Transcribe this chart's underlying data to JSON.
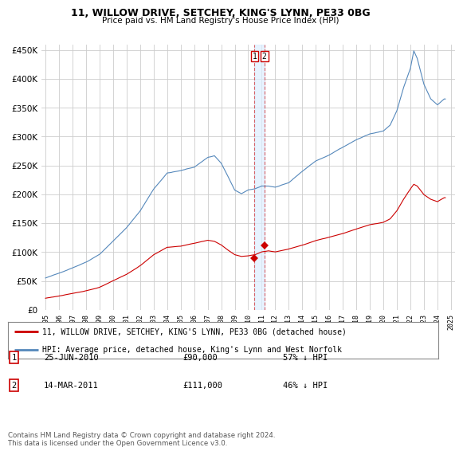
{
  "title": "11, WILLOW DRIVE, SETCHEY, KING'S LYNN, PE33 0BG",
  "subtitle": "Price paid vs. HM Land Registry's House Price Index (HPI)",
  "hpi_color": "#5588bb",
  "hpi_fill_color": "#ddeeff",
  "price_color": "#cc0000",
  "background_color": "#ffffff",
  "grid_color": "#cccccc",
  "ylim": [
    0,
    460000
  ],
  "yticks": [
    0,
    50000,
    100000,
    150000,
    200000,
    250000,
    300000,
    350000,
    400000,
    450000
  ],
  "legend_items": [
    "11, WILLOW DRIVE, SETCHEY, KING'S LYNN, PE33 0BG (detached house)",
    "HPI: Average price, detached house, King's Lynn and West Norfolk"
  ],
  "transactions": [
    {
      "num": "1",
      "date": "25-JUN-2010",
      "price": "£90,000",
      "pct": "57% ↓ HPI",
      "x": 2010.47
    },
    {
      "num": "2",
      "date": "14-MAR-2011",
      "price": "£111,000",
      "pct": "46% ↓ HPI",
      "x": 2011.19
    }
  ],
  "transaction_values": [
    90000,
    111000
  ],
  "footer": "Contains HM Land Registry data © Crown copyright and database right 2024.\nThis data is licensed under the Open Government Licence v3.0."
}
